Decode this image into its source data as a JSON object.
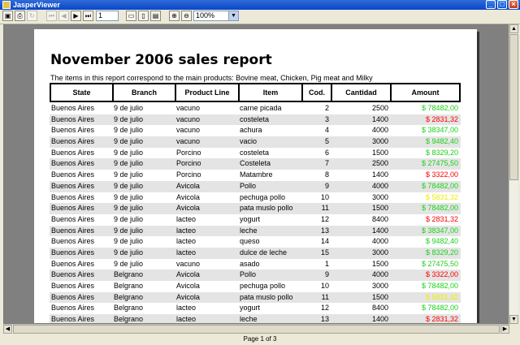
{
  "window": {
    "title": "JasperViewer",
    "minimize": "_",
    "maximize": "□",
    "close": "×"
  },
  "toolbar": {
    "save_icon": "save-icon",
    "print_icon": "print-icon",
    "reload_icon": "reload-icon",
    "first_icon": "first-page-icon",
    "prev_icon": "previous-page-icon",
    "next_icon": "next-page-icon",
    "last_icon": "last-page-icon",
    "page_value": "1",
    "zoom_value": "100%"
  },
  "report": {
    "title": "November 2006 sales report",
    "subtitle": "The items in this report correspond to the main  products: Bovine meat, Chicken, Pig meat and  Milky",
    "columns": [
      "State",
      "Branch",
      "Product Line",
      "Item",
      "Cod.",
      "Cantidad",
      "Amount"
    ],
    "rows": [
      {
        "state": "Buenos Aires",
        "branch": "9 de julio",
        "product": "vacuno",
        "item": "carne picada",
        "cod": "2",
        "qty": "2500",
        "amount": "$ 78482,00",
        "color": "green"
      },
      {
        "state": "Buenos Aires",
        "branch": "9 de julio",
        "product": "vacuno",
        "item": "costeleta",
        "cod": "3",
        "qty": "1400",
        "amount": "$ 2831,32",
        "color": "red"
      },
      {
        "state": "Buenos Aires",
        "branch": "9 de julio",
        "product": "vacuno",
        "item": "achura",
        "cod": "4",
        "qty": "4000",
        "amount": "$ 38347,00",
        "color": "green"
      },
      {
        "state": "Buenos Aires",
        "branch": "9 de julio",
        "product": "vacuno",
        "item": "vacio",
        "cod": "5",
        "qty": "3000",
        "amount": "$ 9482,40",
        "color": "green"
      },
      {
        "state": "Buenos Aires",
        "branch": "9 de julio",
        "product": "Porcino",
        "item": "costeleta",
        "cod": "6",
        "qty": "1500",
        "amount": "$ 8329,20",
        "color": "green"
      },
      {
        "state": "Buenos Aires",
        "branch": "9 de julio",
        "product": "Porcino",
        "item": "Costeleta",
        "cod": "7",
        "qty": "2500",
        "amount": "$ 27475,50",
        "color": "green"
      },
      {
        "state": "Buenos Aires",
        "branch": "9 de julio",
        "product": "Porcino",
        "item": "Matambre",
        "cod": "8",
        "qty": "1400",
        "amount": "$ 3322,00",
        "color": "red"
      },
      {
        "state": "Buenos Aires",
        "branch": "9 de julio",
        "product": "Avicola",
        "item": "Pollo",
        "cod": "9",
        "qty": "4000",
        "amount": "$ 78482,00",
        "color": "green"
      },
      {
        "state": "Buenos Aires",
        "branch": "9 de julio",
        "product": "Avicola",
        "item": "pechuga pollo",
        "cod": "10",
        "qty": "3000",
        "amount": "$ 5831,32",
        "color": "yellow"
      },
      {
        "state": "Buenos Aires",
        "branch": "9 de julio",
        "product": "Avicola",
        "item": "pata muslo pollo",
        "cod": "11",
        "qty": "1500",
        "amount": "$ 78482,00",
        "color": "green"
      },
      {
        "state": "Buenos Aires",
        "branch": "9 de julio",
        "product": "lacteo",
        "item": "yogurt",
        "cod": "12",
        "qty": "8400",
        "amount": "$ 2831,32",
        "color": "red"
      },
      {
        "state": "Buenos Aires",
        "branch": "9 de julio",
        "product": "lacteo",
        "item": "leche",
        "cod": "13",
        "qty": "1400",
        "amount": "$ 38347,00",
        "color": "green"
      },
      {
        "state": "Buenos Aires",
        "branch": "9 de julio",
        "product": "lacteo",
        "item": "queso",
        "cod": "14",
        "qty": "4000",
        "amount": "$ 9482,40",
        "color": "green"
      },
      {
        "state": "Buenos Aires",
        "branch": "9 de julio",
        "product": "lacteo",
        "item": "dulce de leche",
        "cod": "15",
        "qty": "3000",
        "amount": "$ 8329,20",
        "color": "green"
      },
      {
        "state": "Buenos Aires",
        "branch": "9 de julio",
        "product": "vacuno",
        "item": "asado",
        "cod": "1",
        "qty": "1500",
        "amount": "$ 27475,50",
        "color": "green"
      },
      {
        "state": "Buenos Aires",
        "branch": "Belgrano",
        "product": "Avicola",
        "item": "Pollo",
        "cod": "9",
        "qty": "4000",
        "amount": "$ 3322,00",
        "color": "red"
      },
      {
        "state": "Buenos Aires",
        "branch": "Belgrano",
        "product": "Avicola",
        "item": "pechuga pollo",
        "cod": "10",
        "qty": "3000",
        "amount": "$ 78482,00",
        "color": "green"
      },
      {
        "state": "Buenos Aires",
        "branch": "Belgrano",
        "product": "Avicola",
        "item": "pata muslo pollo",
        "cod": "11",
        "qty": "1500",
        "amount": "$ 5831,32",
        "color": "yellow"
      },
      {
        "state": "Buenos Aires",
        "branch": "Belgrano",
        "product": "lacteo",
        "item": "yogurt",
        "cod": "12",
        "qty": "8400",
        "amount": "$ 78482,00",
        "color": "green"
      },
      {
        "state": "Buenos Aires",
        "branch": "Belgrano",
        "product": "lacteo",
        "item": "leche",
        "cod": "13",
        "qty": "1400",
        "amount": "$ 2831,32",
        "color": "red"
      }
    ]
  },
  "status": {
    "page_label": "Page 1 of 3"
  }
}
